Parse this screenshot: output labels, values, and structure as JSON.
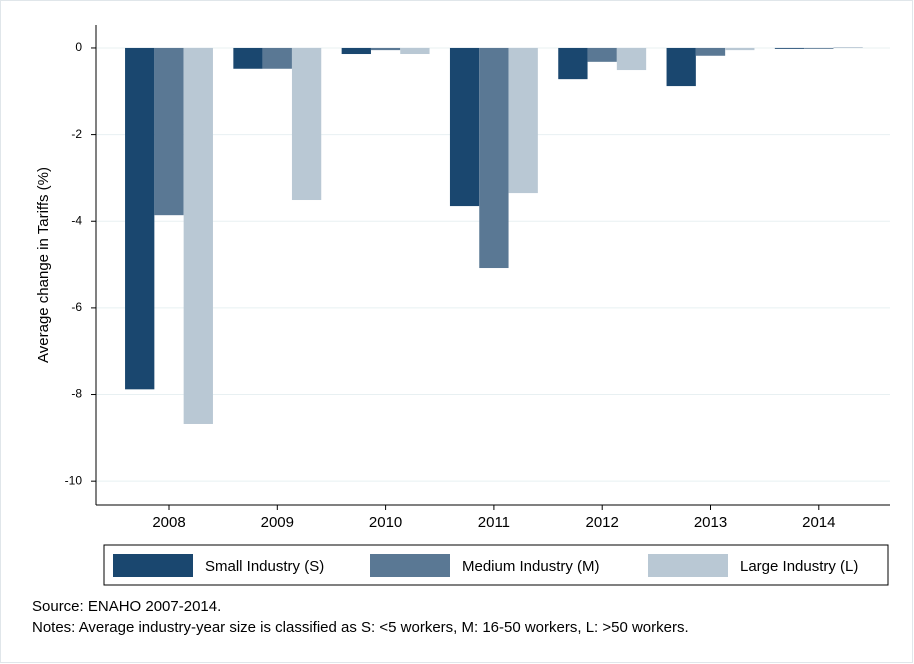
{
  "chart_data": {
    "type": "bar",
    "y_label": "Average change in Tariffs (%)",
    "categories": [
      "2008",
      "2009",
      "2010",
      "2011",
      "2012",
      "2013",
      "2014"
    ],
    "series": [
      {
        "name": "Small Industry (S)",
        "color": "#1a476f",
        "values": [
          -7.88,
          -0.48,
          -0.14,
          -3.65,
          -0.72,
          -0.88,
          -0.02
        ]
      },
      {
        "name": "Medium Industry (M)",
        "color": "#5a7894",
        "values": [
          -3.86,
          -0.48,
          -0.05,
          -5.08,
          -0.32,
          -0.18,
          -0.02
        ]
      },
      {
        "name": "Large Industry (L)",
        "color": "#b9c8d4",
        "values": [
          -8.68,
          -3.51,
          -0.14,
          -3.35,
          -0.51,
          -0.05,
          0.02
        ]
      }
    ],
    "ylim": [
      -10.55,
      0.53
    ],
    "yticks": [
      0,
      -2,
      -4,
      -6,
      -8,
      -10
    ],
    "grid": true,
    "source": "Source: ENAHO 2007-2014.",
    "notes": "Notes: Average industry-year size is classified as S: <5 workers,  M: 16-50 workers, L: >50 workers."
  }
}
